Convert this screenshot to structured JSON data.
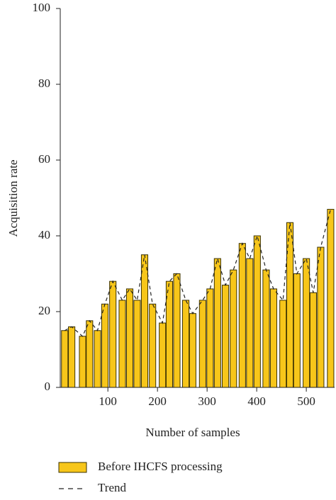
{
  "chart_data": {
    "type": "bar",
    "x_label": "Number of samples",
    "y_label": "Acquisition rate",
    "x": [
      13,
      27,
      49,
      63,
      79,
      94,
      110,
      129,
      144,
      159,
      174,
      190,
      210,
      224,
      239,
      257,
      271,
      291,
      306,
      321,
      337,
      353,
      371,
      386,
      401,
      419,
      434,
      453,
      467,
      481,
      500,
      514,
      529,
      549
    ],
    "series": [
      {
        "name": "Before IHCFS processing",
        "color": "#f7c61a",
        "edgecolor": "#3a3000",
        "values": [
          15,
          16,
          13.5,
          17.6,
          15,
          22,
          28,
          23,
          26,
          23,
          35,
          22,
          17,
          28,
          30,
          23,
          19.5,
          23,
          26,
          34,
          27,
          31,
          38,
          34,
          40,
          31,
          26,
          23,
          43.5,
          30,
          34,
          25,
          37,
          47
        ]
      },
      {
        "name": "Trend",
        "color": "#222222",
        "style": "dashed",
        "values": [
          15,
          16,
          13.5,
          17.6,
          15,
          22,
          28,
          23,
          26,
          23,
          35,
          22,
          17,
          28,
          30,
          23,
          19.5,
          23,
          26,
          34,
          27,
          31,
          38,
          34,
          40,
          31,
          26,
          23,
          43.5,
          30,
          34,
          25,
          37,
          47
        ]
      }
    ],
    "xlim": [
      4,
      557
    ],
    "xticks": [
      100,
      200,
      300,
      400,
      500
    ],
    "ylim": [
      0,
      100
    ],
    "yticks": [
      0,
      20,
      40,
      60,
      80,
      100
    ],
    "bar_width": 13,
    "legend": "bottom"
  }
}
